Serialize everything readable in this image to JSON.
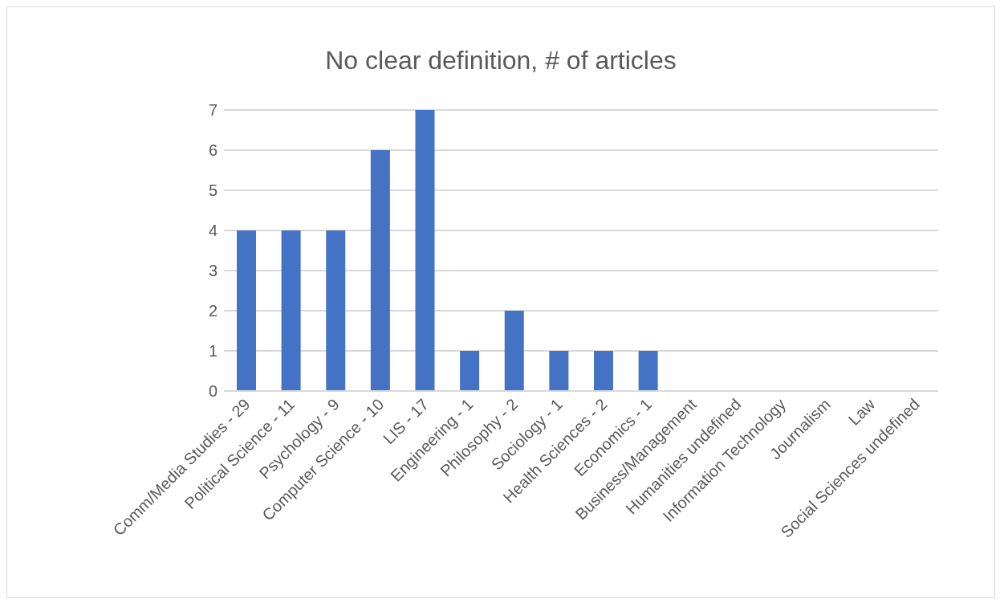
{
  "chart_data": {
    "type": "bar",
    "title": "No clear definition, # of articles",
    "categories": [
      "Comm/Media Studies - 29",
      "Political Science - 11",
      "Psychology - 9",
      "Computer Science - 10",
      "LIS - 17",
      "Engineering - 1",
      "Philosophy - 2",
      "Sociology - 1",
      "Health Sciences - 2",
      "Economics - 1",
      "Business/Management",
      "Humanities undefined",
      "Information Technology",
      "Journalism",
      "Law",
      "Social Sciences undefined"
    ],
    "values": [
      4,
      4,
      4,
      6,
      7,
      1,
      2,
      1,
      1,
      1,
      0,
      0,
      0,
      0,
      0,
      0
    ],
    "color": "#4472c4",
    "ylim": [
      0,
      7
    ],
    "yticks": [
      0,
      1,
      2,
      3,
      4,
      5,
      6,
      7
    ],
    "grid": "y"
  }
}
